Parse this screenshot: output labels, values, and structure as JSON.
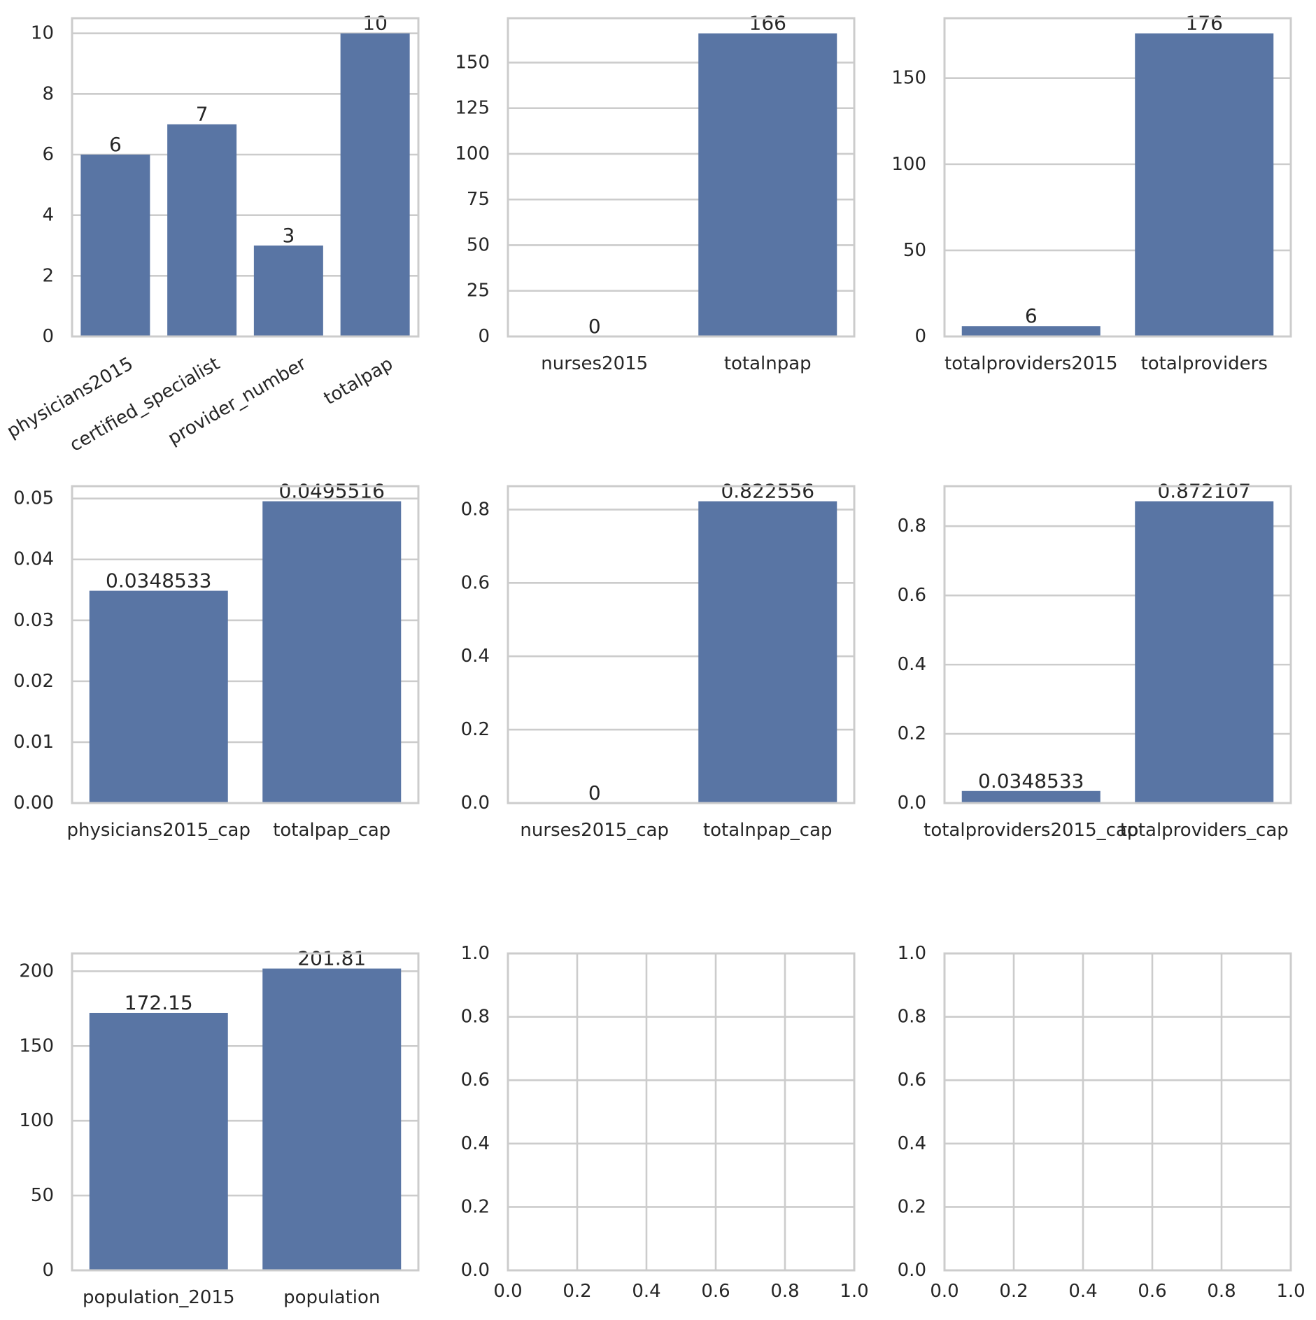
{
  "colors": {
    "bar": "#5975a4",
    "grid": "#cccccc",
    "text": "#262626",
    "background": "#ffffff"
  },
  "chart_data": [
    {
      "type": "bar",
      "categories": [
        "physicians2015",
        "certified_specialist",
        "provider_number",
        "totalpap"
      ],
      "values": [
        6,
        7,
        3,
        10
      ],
      "bar_labels": [
        "6",
        "7",
        "3",
        "10"
      ],
      "ylim": [
        0,
        10.5
      ],
      "yticks": [
        0,
        2,
        4,
        6,
        8,
        10
      ],
      "ytick_labels": [
        "0",
        "2",
        "4",
        "6",
        "8",
        "10"
      ],
      "xtick_rotation": 30,
      "grid": "y"
    },
    {
      "type": "bar",
      "categories": [
        "nurses2015",
        "totalnpap"
      ],
      "values": [
        0,
        166
      ],
      "bar_labels": [
        "0",
        "166"
      ],
      "ylim": [
        0,
        174.3
      ],
      "yticks": [
        0,
        25,
        50,
        75,
        100,
        125,
        150
      ],
      "ytick_labels": [
        "0",
        "25",
        "50",
        "75",
        "100",
        "125",
        "150"
      ],
      "grid": "y"
    },
    {
      "type": "bar",
      "categories": [
        "totalproviders2015",
        "totalproviders"
      ],
      "values": [
        6,
        176
      ],
      "bar_labels": [
        "6",
        "176"
      ],
      "ylim": [
        0,
        184.8
      ],
      "yticks": [
        0,
        50,
        100,
        150
      ],
      "ytick_labels": [
        "0",
        "50",
        "100",
        "150"
      ],
      "grid": "y"
    },
    {
      "type": "bar",
      "categories": [
        "physicians2015_cap",
        "totalpap_cap"
      ],
      "values": [
        0.0348533,
        0.0495516
      ],
      "bar_labels": [
        "0.0348533",
        "0.0495516"
      ],
      "ylim": [
        0,
        0.05203
      ],
      "yticks": [
        0,
        0.01,
        0.02,
        0.03,
        0.04,
        0.05
      ],
      "ytick_labels": [
        "0.00",
        "0.01",
        "0.02",
        "0.03",
        "0.04",
        "0.05"
      ],
      "grid": "y"
    },
    {
      "type": "bar",
      "categories": [
        "nurses2015_cap",
        "totalnpap_cap"
      ],
      "values": [
        0,
        0.822556
      ],
      "bar_labels": [
        "0",
        "0.822556"
      ],
      "ylim": [
        0,
        0.8637
      ],
      "yticks": [
        0,
        0.2,
        0.4,
        0.6,
        0.8
      ],
      "ytick_labels": [
        "0.0",
        "0.2",
        "0.4",
        "0.6",
        "0.8"
      ],
      "grid": "y"
    },
    {
      "type": "bar",
      "categories": [
        "totalproviders2015_cap",
        "totalproviders_cap"
      ],
      "values": [
        0.0348533,
        0.872107
      ],
      "bar_labels": [
        "0.0348533",
        "0.872107"
      ],
      "ylim": [
        0,
        0.9157
      ],
      "yticks": [
        0,
        0.2,
        0.4,
        0.6,
        0.8
      ],
      "ytick_labels": [
        "0.0",
        "0.2",
        "0.4",
        "0.6",
        "0.8"
      ],
      "grid": "y"
    },
    {
      "type": "bar",
      "categories": [
        "population_2015",
        "population"
      ],
      "values": [
        172.15,
        201.81
      ],
      "bar_labels": [
        "172.15",
        "201.81"
      ],
      "ylim": [
        0,
        211.9
      ],
      "yticks": [
        0,
        50,
        100,
        150,
        200
      ],
      "ytick_labels": [
        "0",
        "50",
        "100",
        "150",
        "200"
      ],
      "grid": "y"
    },
    {
      "type": "empty",
      "xlim": [
        0,
        1
      ],
      "ylim": [
        0,
        1
      ],
      "xticks": [
        0,
        0.2,
        0.4,
        0.6,
        0.8,
        1.0
      ],
      "xtick_labels": [
        "0.0",
        "0.2",
        "0.4",
        "0.6",
        "0.8",
        "1.0"
      ],
      "yticks": [
        0,
        0.2,
        0.4,
        0.6,
        0.8,
        1.0
      ],
      "ytick_labels": [
        "0.0",
        "0.2",
        "0.4",
        "0.6",
        "0.8",
        "1.0"
      ],
      "grid": "both"
    },
    {
      "type": "empty",
      "xlim": [
        0,
        1
      ],
      "ylim": [
        0,
        1
      ],
      "xticks": [
        0,
        0.2,
        0.4,
        0.6,
        0.8,
        1.0
      ],
      "xtick_labels": [
        "0.0",
        "0.2",
        "0.4",
        "0.6",
        "0.8",
        "1.0"
      ],
      "yticks": [
        0,
        0.2,
        0.4,
        0.6,
        0.8,
        1.0
      ],
      "ytick_labels": [
        "0.0",
        "0.2",
        "0.4",
        "0.6",
        "0.8",
        "1.0"
      ],
      "grid": "both"
    }
  ]
}
